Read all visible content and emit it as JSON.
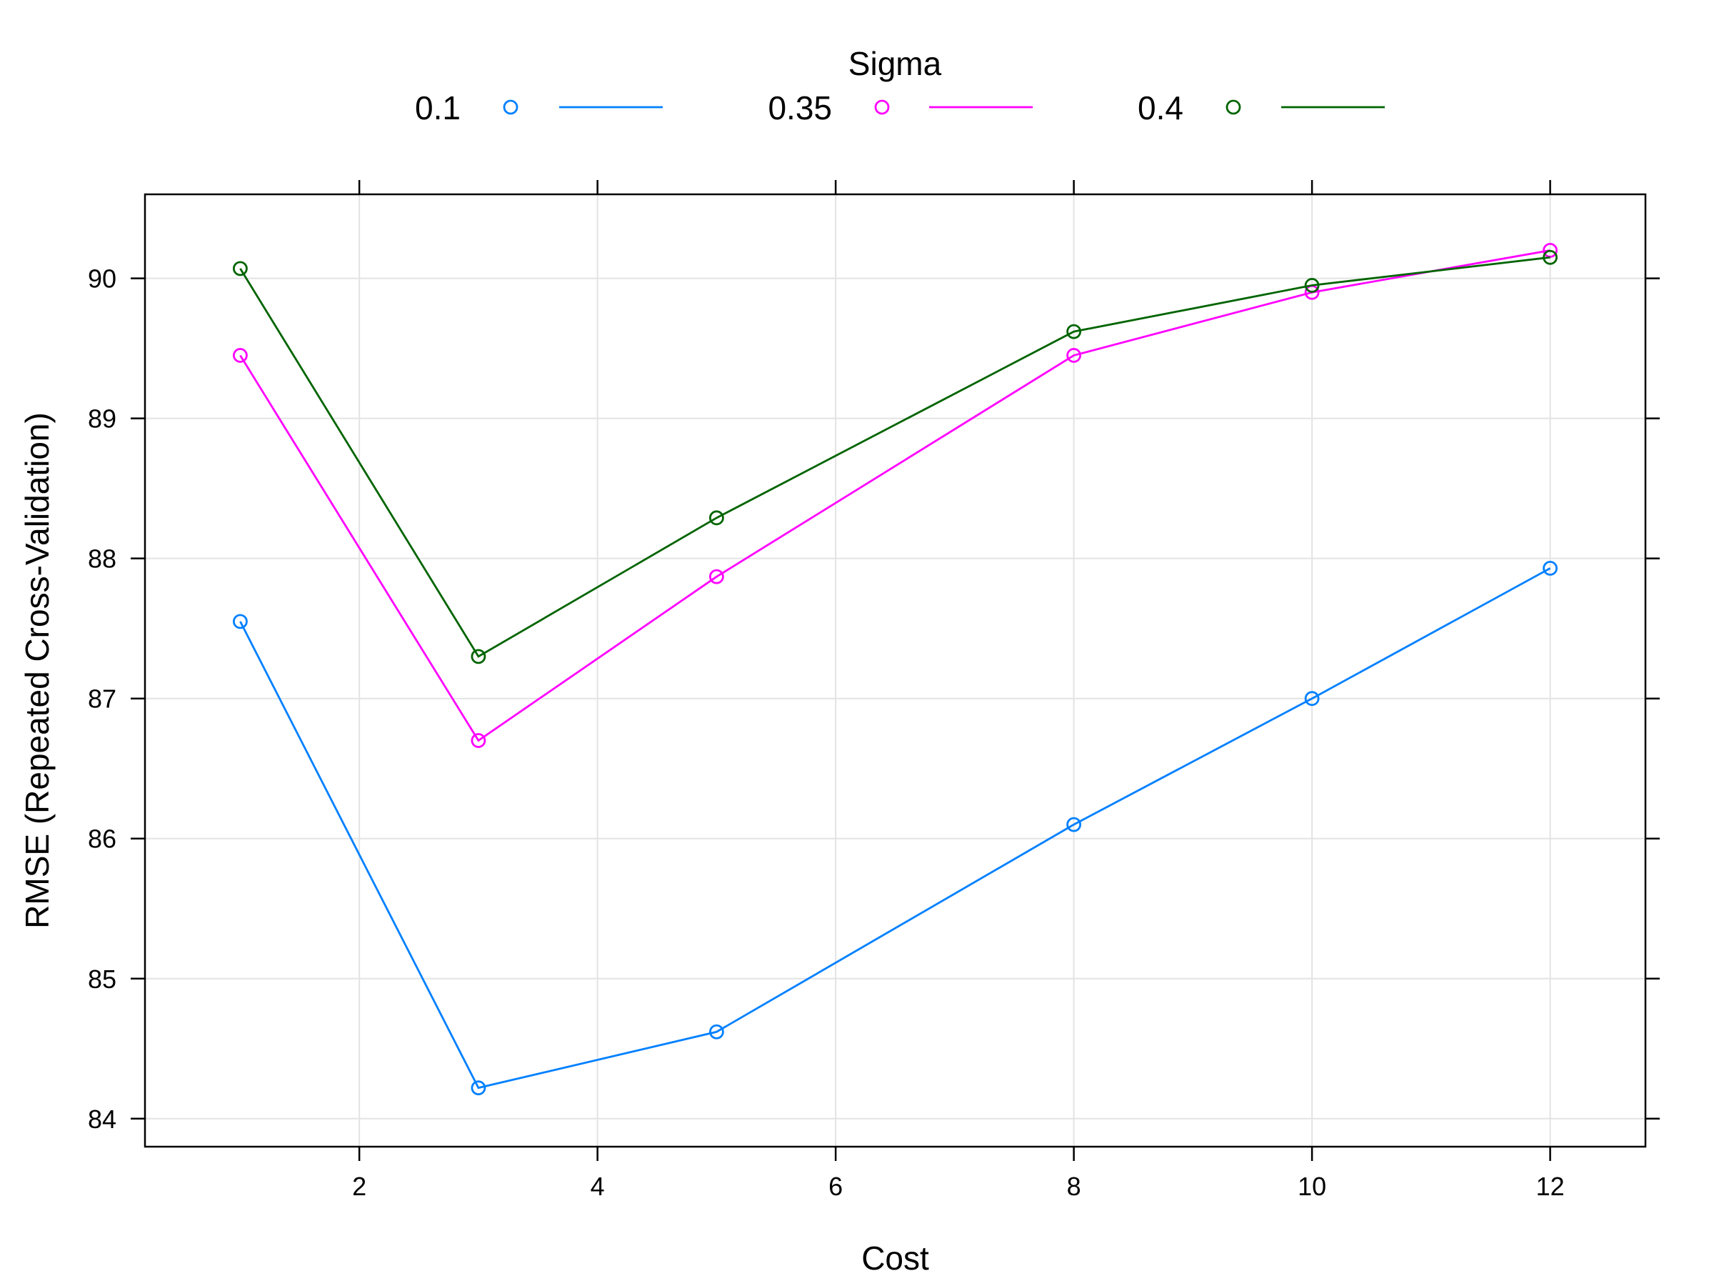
{
  "chart_data": {
    "type": "line",
    "title": "",
    "xlabel": "Cost",
    "ylabel": "RMSE (Repeated Cross-Validation)",
    "xlim": [
      0.2,
      12.8
    ],
    "ylim": [
      83.8,
      90.6
    ],
    "xticks": [
      2,
      4,
      6,
      8,
      10,
      12
    ],
    "yticks": [
      84,
      85,
      86,
      87,
      88,
      89,
      90
    ],
    "grid": true,
    "legend": {
      "title": "Sigma",
      "position": "top"
    },
    "x": [
      1,
      3,
      5,
      8,
      10,
      12
    ],
    "series": [
      {
        "name": "0.1",
        "color": "#0080ff",
        "values": [
          87.55,
          84.22,
          84.62,
          86.1,
          87.0,
          87.93
        ]
      },
      {
        "name": "0.35",
        "color": "#ff00ff",
        "values": [
          89.45,
          86.7,
          87.87,
          89.45,
          89.9,
          90.2
        ]
      },
      {
        "name": "0.4",
        "color": "#006400",
        "values": [
          90.07,
          87.3,
          88.29,
          89.62,
          89.95,
          90.15
        ]
      }
    ]
  }
}
